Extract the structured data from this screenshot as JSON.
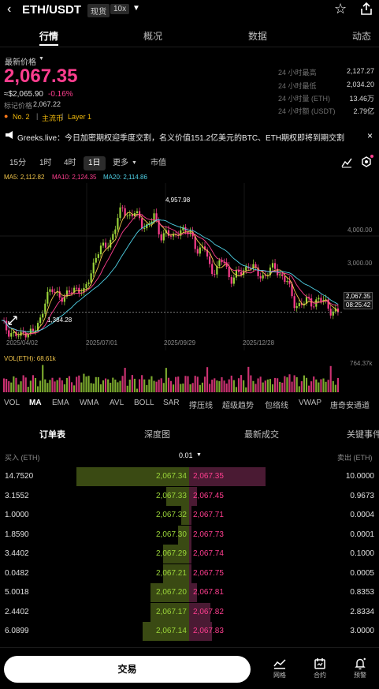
{
  "header": {
    "pair": "ETH/USDT",
    "spot_tag": "现货",
    "leverage_tag": "10x"
  },
  "tabs": [
    "行情",
    "概况",
    "数据",
    "动态"
  ],
  "price": {
    "label": "最新价格",
    "last": "2,067.35",
    "fiat": "≈$2,065.90",
    "change": "-0.16%",
    "mark_label": "标记价格",
    "mark_value": "2,067.22",
    "rank": "No. 2",
    "tag_main": "主流币",
    "tag_layer": "Layer 1"
  },
  "stats": [
    {
      "label": "24 小时最高",
      "value": "2,127.27"
    },
    {
      "label": "24 小时最低",
      "value": "2,034.20"
    },
    {
      "label": "24 小时量 (ETH)",
      "value": "13.46万"
    },
    {
      "label": "24 小时额 (USDT)",
      "value": "2.79亿"
    }
  ],
  "news": {
    "text": "Greeks.live：今日加密期权迎季度交割，名义价值151.2亿美元的BTC、ETH期权即将到期交割",
    "close": "×"
  },
  "intervals": [
    "15分",
    "1时",
    "4时",
    "1日",
    "更多",
    "市值"
  ],
  "ma_legend": {
    "ma5": "MA5: 2,112.82",
    "ma10": "MA10: 2,124.35",
    "ma20": "MA20: 2,114.86"
  },
  "chart_data": {
    "type": "candlestick",
    "x_ticks": [
      "2025/04/02",
      "2025/07/01",
      "2025/09/29",
      "2025/12/28"
    ],
    "y_ticks": [
      "4,000.00",
      "3,000.00"
    ],
    "high_label": "4,957.98",
    "low_label": "1,384.28",
    "last_price_label": "2,067.35",
    "countdown_label": "08:25:42",
    "series": [
      {
        "name": "close",
        "values": [
          1800,
          1600,
          1500,
          1450,
          1600,
          1550,
          1800,
          2500,
          2600,
          2500,
          2450,
          2600,
          2700,
          2550,
          3000,
          3600,
          3700,
          3800,
          4300,
          4700,
          4500,
          4600,
          4300,
          4250,
          4500,
          4000,
          4100,
          3900,
          4200,
          4100,
          4000,
          3600,
          3700,
          3100,
          3200,
          3400,
          2900,
          3000,
          3100,
          3300,
          3100,
          2950,
          3100,
          3200,
          3000,
          2850,
          2300,
          2250,
          2350,
          2300,
          2400,
          2300,
          2100,
          2067
        ]
      }
    ]
  },
  "volume": {
    "label": "VOL(ETH): 68.61k",
    "axis": "764.37k"
  },
  "indicators": [
    "VOL",
    "MA",
    "EMA",
    "WMA",
    "AVL",
    "BOLL",
    "SAR",
    "撑压线",
    "超级趋势",
    "包络线",
    "VWAP",
    "唐奇安通道"
  ],
  "order_tabs": [
    "订单表",
    "深度图",
    "最新成交",
    "关键事件"
  ],
  "orderbook_header": {
    "buy": "买入 (ETH)",
    "precision": "0.01",
    "sell": "卖出 (ETH)"
  },
  "orderbook": [
    {
      "bid_qty": "14.7520",
      "bid_price": "2,067.34",
      "ask_price": "2,067.35",
      "ask_qty": "10.0000",
      "bid_depth": 1.0,
      "ask_depth": 0.68
    },
    {
      "bid_qty": "3.1552",
      "bid_price": "2,067.33",
      "ask_price": "2,067.45",
      "ask_qty": "0.9673",
      "bid_depth": 0.2,
      "ask_depth": 0.07
    },
    {
      "bid_qty": "1.0000",
      "bid_price": "2,067.32",
      "ask_price": "2,067.71",
      "ask_qty": "0.0004",
      "bid_depth": 0.07,
      "ask_depth": 0.02
    },
    {
      "bid_qty": "1.8590",
      "bid_price": "2,067.30",
      "ask_price": "2,067.73",
      "ask_qty": "0.0001",
      "bid_depth": 0.1,
      "ask_depth": 0.02
    },
    {
      "bid_qty": "3.4402",
      "bid_price": "2,067.29",
      "ask_price": "2,067.74",
      "ask_qty": "0.1000",
      "bid_depth": 0.23,
      "ask_depth": 0.02
    },
    {
      "bid_qty": "0.0482",
      "bid_price": "2,067.21",
      "ask_price": "2,067.75",
      "ask_qty": "0.0005",
      "bid_depth": 0.23,
      "ask_depth": 0.02
    },
    {
      "bid_qty": "5.0018",
      "bid_price": "2,067.20",
      "ask_price": "2,067.81",
      "ask_qty": "0.8353",
      "bid_depth": 0.34,
      "ask_depth": 0.07
    },
    {
      "bid_qty": "2.4402",
      "bid_price": "2,067.17",
      "ask_price": "2,067.82",
      "ask_qty": "2.8334",
      "bid_depth": 0.34,
      "ask_depth": 0.19
    },
    {
      "bid_qty": "6.0899",
      "bid_price": "2,067.14",
      "ask_price": "2,067.83",
      "ask_qty": "3.0000",
      "bid_depth": 0.41,
      "ask_depth": 0.2
    }
  ],
  "bottom": {
    "trade": "交易",
    "grid": "网格",
    "contract": "合约",
    "alert": "预警"
  },
  "colors": {
    "up": "#9bd53a",
    "down": "#ff3e8f",
    "ma5": "#f0c44a",
    "ma10": "#ff3e8f",
    "ma20": "#4fd1e6"
  }
}
